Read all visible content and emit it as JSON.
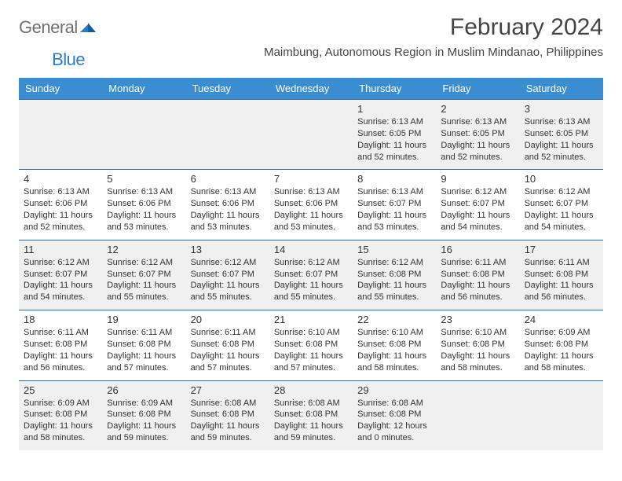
{
  "brand": {
    "part1": "General",
    "part2": "Blue",
    "accent_color": "#2f7bbf",
    "muted_color": "#707070"
  },
  "header": {
    "title": "February 2024",
    "subtitle": "Maimbung, Autonomous Region in Muslim Mindanao, Philippines",
    "title_fontsize": 30,
    "subtitle_fontsize": 15
  },
  "colors": {
    "header_bg": "#3a8dd0",
    "header_text": "#ffffff",
    "row_border": "#2b6aa0",
    "row_alt_bg": "#f0f0f0",
    "row_bg": "#ffffff",
    "text": "#333333"
  },
  "day_headers": [
    "Sunday",
    "Monday",
    "Tuesday",
    "Wednesday",
    "Thursday",
    "Friday",
    "Saturday"
  ],
  "weeks": [
    [
      {
        "n": "",
        "s": "",
        "ss": "",
        "d": ""
      },
      {
        "n": "",
        "s": "",
        "ss": "",
        "d": ""
      },
      {
        "n": "",
        "s": "",
        "ss": "",
        "d": ""
      },
      {
        "n": "",
        "s": "",
        "ss": "",
        "d": ""
      },
      {
        "n": "1",
        "s": "Sunrise: 6:13 AM",
        "ss": "Sunset: 6:05 PM",
        "d": "Daylight: 11 hours and 52 minutes."
      },
      {
        "n": "2",
        "s": "Sunrise: 6:13 AM",
        "ss": "Sunset: 6:05 PM",
        "d": "Daylight: 11 hours and 52 minutes."
      },
      {
        "n": "3",
        "s": "Sunrise: 6:13 AM",
        "ss": "Sunset: 6:05 PM",
        "d": "Daylight: 11 hours and 52 minutes."
      }
    ],
    [
      {
        "n": "4",
        "s": "Sunrise: 6:13 AM",
        "ss": "Sunset: 6:06 PM",
        "d": "Daylight: 11 hours and 52 minutes."
      },
      {
        "n": "5",
        "s": "Sunrise: 6:13 AM",
        "ss": "Sunset: 6:06 PM",
        "d": "Daylight: 11 hours and 53 minutes."
      },
      {
        "n": "6",
        "s": "Sunrise: 6:13 AM",
        "ss": "Sunset: 6:06 PM",
        "d": "Daylight: 11 hours and 53 minutes."
      },
      {
        "n": "7",
        "s": "Sunrise: 6:13 AM",
        "ss": "Sunset: 6:06 PM",
        "d": "Daylight: 11 hours and 53 minutes."
      },
      {
        "n": "8",
        "s": "Sunrise: 6:13 AM",
        "ss": "Sunset: 6:07 PM",
        "d": "Daylight: 11 hours and 53 minutes."
      },
      {
        "n": "9",
        "s": "Sunrise: 6:12 AM",
        "ss": "Sunset: 6:07 PM",
        "d": "Daylight: 11 hours and 54 minutes."
      },
      {
        "n": "10",
        "s": "Sunrise: 6:12 AM",
        "ss": "Sunset: 6:07 PM",
        "d": "Daylight: 11 hours and 54 minutes."
      }
    ],
    [
      {
        "n": "11",
        "s": "Sunrise: 6:12 AM",
        "ss": "Sunset: 6:07 PM",
        "d": "Daylight: 11 hours and 54 minutes."
      },
      {
        "n": "12",
        "s": "Sunrise: 6:12 AM",
        "ss": "Sunset: 6:07 PM",
        "d": "Daylight: 11 hours and 55 minutes."
      },
      {
        "n": "13",
        "s": "Sunrise: 6:12 AM",
        "ss": "Sunset: 6:07 PM",
        "d": "Daylight: 11 hours and 55 minutes."
      },
      {
        "n": "14",
        "s": "Sunrise: 6:12 AM",
        "ss": "Sunset: 6:07 PM",
        "d": "Daylight: 11 hours and 55 minutes."
      },
      {
        "n": "15",
        "s": "Sunrise: 6:12 AM",
        "ss": "Sunset: 6:08 PM",
        "d": "Daylight: 11 hours and 55 minutes."
      },
      {
        "n": "16",
        "s": "Sunrise: 6:11 AM",
        "ss": "Sunset: 6:08 PM",
        "d": "Daylight: 11 hours and 56 minutes."
      },
      {
        "n": "17",
        "s": "Sunrise: 6:11 AM",
        "ss": "Sunset: 6:08 PM",
        "d": "Daylight: 11 hours and 56 minutes."
      }
    ],
    [
      {
        "n": "18",
        "s": "Sunrise: 6:11 AM",
        "ss": "Sunset: 6:08 PM",
        "d": "Daylight: 11 hours and 56 minutes."
      },
      {
        "n": "19",
        "s": "Sunrise: 6:11 AM",
        "ss": "Sunset: 6:08 PM",
        "d": "Daylight: 11 hours and 57 minutes."
      },
      {
        "n": "20",
        "s": "Sunrise: 6:11 AM",
        "ss": "Sunset: 6:08 PM",
        "d": "Daylight: 11 hours and 57 minutes."
      },
      {
        "n": "21",
        "s": "Sunrise: 6:10 AM",
        "ss": "Sunset: 6:08 PM",
        "d": "Daylight: 11 hours and 57 minutes."
      },
      {
        "n": "22",
        "s": "Sunrise: 6:10 AM",
        "ss": "Sunset: 6:08 PM",
        "d": "Daylight: 11 hours and 58 minutes."
      },
      {
        "n": "23",
        "s": "Sunrise: 6:10 AM",
        "ss": "Sunset: 6:08 PM",
        "d": "Daylight: 11 hours and 58 minutes."
      },
      {
        "n": "24",
        "s": "Sunrise: 6:09 AM",
        "ss": "Sunset: 6:08 PM",
        "d": "Daylight: 11 hours and 58 minutes."
      }
    ],
    [
      {
        "n": "25",
        "s": "Sunrise: 6:09 AM",
        "ss": "Sunset: 6:08 PM",
        "d": "Daylight: 11 hours and 58 minutes."
      },
      {
        "n": "26",
        "s": "Sunrise: 6:09 AM",
        "ss": "Sunset: 6:08 PM",
        "d": "Daylight: 11 hours and 59 minutes."
      },
      {
        "n": "27",
        "s": "Sunrise: 6:08 AM",
        "ss": "Sunset: 6:08 PM",
        "d": "Daylight: 11 hours and 59 minutes."
      },
      {
        "n": "28",
        "s": "Sunrise: 6:08 AM",
        "ss": "Sunset: 6:08 PM",
        "d": "Daylight: 11 hours and 59 minutes."
      },
      {
        "n": "29",
        "s": "Sunrise: 6:08 AM",
        "ss": "Sunset: 6:08 PM",
        "d": "Daylight: 12 hours and 0 minutes."
      },
      {
        "n": "",
        "s": "",
        "ss": "",
        "d": ""
      },
      {
        "n": "",
        "s": "",
        "ss": "",
        "d": ""
      }
    ]
  ]
}
